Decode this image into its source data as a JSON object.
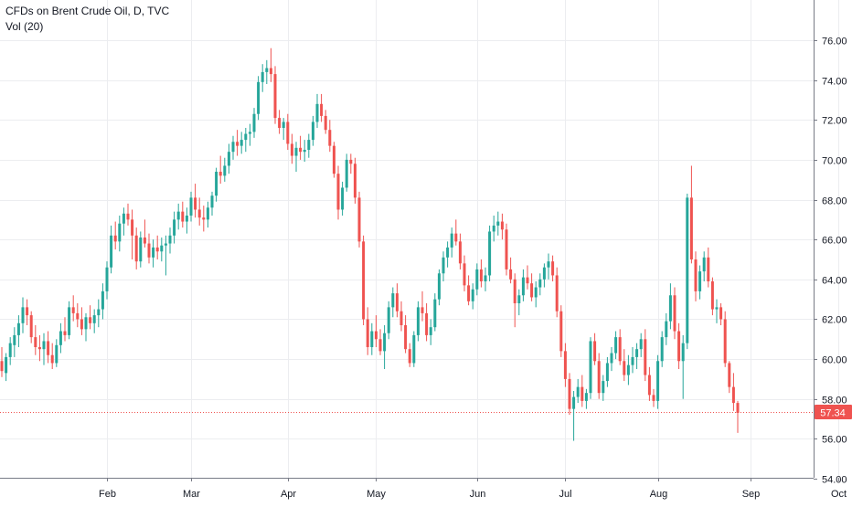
{
  "legend": {
    "symbol_line": "CFDs on Brent Crude Oil, D, TVC",
    "indicator_line": "Vol (20)"
  },
  "colors": {
    "up": "#26a69a",
    "down": "#ef5350",
    "grid": "#ecedf0",
    "axis_text": "#131722",
    "price_line": "#ef5350",
    "background": "#ffffff"
  },
  "last_price": {
    "value": 57.34,
    "label": "57.34"
  },
  "chart_data": {
    "type": "candlestick",
    "title": "CFDs on Brent Crude Oil, D, TVC",
    "xlabel": "",
    "ylabel": "",
    "ylim": [
      54,
      78
    ],
    "y_ticks": [
      "54.00",
      "56.00",
      "58.00",
      "60.00",
      "62.00",
      "64.00",
      "66.00",
      "68.00",
      "70.00",
      "72.00",
      "74.00",
      "76.00"
    ],
    "x_ticks": [
      "Feb",
      "Mar",
      "Apr",
      "May",
      "Jun",
      "Jul",
      "Aug",
      "Sep",
      "Oct"
    ],
    "x_tick_positions": [
      25,
      45,
      68,
      89,
      113,
      134,
      156,
      178,
      199
    ],
    "grid": true,
    "candles": [
      [
        59.9,
        60.6,
        59.1,
        59.4
      ],
      [
        59.3,
        60.3,
        58.9,
        60.1
      ],
      [
        60.1,
        61.1,
        59.7,
        60.8
      ],
      [
        60.7,
        61.6,
        60.1,
        61.2
      ],
      [
        61.2,
        62.2,
        60.6,
        61.8
      ],
      [
        61.8,
        63.1,
        61.3,
        62.6
      ],
      [
        62.6,
        63.0,
        61.7,
        62.2
      ],
      [
        62.2,
        62.4,
        60.8,
        61.1
      ],
      [
        61.1,
        61.7,
        60.2,
        60.6
      ],
      [
        60.6,
        61.2,
        59.9,
        60.5
      ],
      [
        60.5,
        61.3,
        59.7,
        60.9
      ],
      [
        60.9,
        61.4,
        59.8,
        60.2
      ],
      [
        60.2,
        60.8,
        59.5,
        59.8
      ],
      [
        59.8,
        61.0,
        59.6,
        60.7
      ],
      [
        60.7,
        61.8,
        60.3,
        61.4
      ],
      [
        61.4,
        62.1,
        60.9,
        61.2
      ],
      [
        61.2,
        62.9,
        61.0,
        62.6
      ],
      [
        62.6,
        63.2,
        61.9,
        62.3
      ],
      [
        62.3,
        62.8,
        61.6,
        62.0
      ],
      [
        62.0,
        62.6,
        61.2,
        61.5
      ],
      [
        61.5,
        62.3,
        60.9,
        62.1
      ],
      [
        62.1,
        62.7,
        61.5,
        61.8
      ],
      [
        61.8,
        62.5,
        61.3,
        62.2
      ],
      [
        62.2,
        63.0,
        61.6,
        62.5
      ],
      [
        62.5,
        63.8,
        62.0,
        63.4
      ],
      [
        63.4,
        64.9,
        63.0,
        64.6
      ],
      [
        64.6,
        66.7,
        64.3,
        66.2
      ],
      [
        66.2,
        66.9,
        65.5,
        65.9
      ],
      [
        65.9,
        67.2,
        65.4,
        66.8
      ],
      [
        66.8,
        67.6,
        66.2,
        67.3
      ],
      [
        67.3,
        67.8,
        66.7,
        67.0
      ],
      [
        67.0,
        67.5,
        65.0,
        66.2
      ],
      [
        66.2,
        66.6,
        64.5,
        64.9
      ],
      [
        64.9,
        66.4,
        64.6,
        66.1
      ],
      [
        66.1,
        67.0,
        65.6,
        65.8
      ],
      [
        65.8,
        66.3,
        64.8,
        65.1
      ],
      [
        65.1,
        66.0,
        64.6,
        65.6
      ],
      [
        65.6,
        66.2,
        65.0,
        65.4
      ],
      [
        65.4,
        66.1,
        64.9,
        65.7
      ],
      [
        65.7,
        66.2,
        64.2,
        65.8
      ],
      [
        65.8,
        66.6,
        65.3,
        66.2
      ],
      [
        66.2,
        67.4,
        65.8,
        67.0
      ],
      [
        67.0,
        67.8,
        66.5,
        67.4
      ],
      [
        67.4,
        67.9,
        66.6,
        66.9
      ],
      [
        66.9,
        67.6,
        66.3,
        67.2
      ],
      [
        67.2,
        68.4,
        66.9,
        68.1
      ],
      [
        68.1,
        68.8,
        67.1,
        67.5
      ],
      [
        67.5,
        68.1,
        66.7,
        67.1
      ],
      [
        67.1,
        67.7,
        66.4,
        67.0
      ],
      [
        67.0,
        67.9,
        66.6,
        67.6
      ],
      [
        67.6,
        68.4,
        67.2,
        68.2
      ],
      [
        68.2,
        69.6,
        67.9,
        69.4
      ],
      [
        69.4,
        70.2,
        68.8,
        69.2
      ],
      [
        69.2,
        70.1,
        68.9,
        69.7
      ],
      [
        69.7,
        70.8,
        69.3,
        70.4
      ],
      [
        70.4,
        71.2,
        70.0,
        70.9
      ],
      [
        70.9,
        71.5,
        70.2,
        70.7
      ],
      [
        70.7,
        71.4,
        70.3,
        71.0
      ],
      [
        71.0,
        71.6,
        70.4,
        71.3
      ],
      [
        71.3,
        71.8,
        70.7,
        71.4
      ],
      [
        71.4,
        72.6,
        71.1,
        72.3
      ],
      [
        72.3,
        74.2,
        72.0,
        73.9
      ],
      [
        73.9,
        74.8,
        73.4,
        74.4
      ],
      [
        74.4,
        75.0,
        73.8,
        74.6
      ],
      [
        74.6,
        75.6,
        73.9,
        74.3
      ],
      [
        74.3,
        74.7,
        71.8,
        72.1
      ],
      [
        72.1,
        72.5,
        71.3,
        71.6
      ],
      [
        71.6,
        72.1,
        71.0,
        71.9
      ],
      [
        71.9,
        72.3,
        70.5,
        70.8
      ],
      [
        70.8,
        71.3,
        69.8,
        70.2
      ],
      [
        70.2,
        70.9,
        69.4,
        70.6
      ],
      [
        70.6,
        71.2,
        70.0,
        70.4
      ],
      [
        70.4,
        71.0,
        69.9,
        70.5
      ],
      [
        70.5,
        71.3,
        70.1,
        71.0
      ],
      [
        71.0,
        72.2,
        70.7,
        71.9
      ],
      [
        71.9,
        73.3,
        71.6,
        72.8
      ],
      [
        72.8,
        73.3,
        71.9,
        72.2
      ],
      [
        72.2,
        72.5,
        71.3,
        71.5
      ],
      [
        71.5,
        72.0,
        70.4,
        70.7
      ],
      [
        70.7,
        70.9,
        69.1,
        69.3
      ],
      [
        69.3,
        69.7,
        67.0,
        67.5
      ],
      [
        67.5,
        68.9,
        67.2,
        68.6
      ],
      [
        68.6,
        70.3,
        68.4,
        70.0
      ],
      [
        70.0,
        70.3,
        69.3,
        69.8
      ],
      [
        69.8,
        70.1,
        67.8,
        68.1
      ],
      [
        68.1,
        68.4,
        65.6,
        65.9
      ],
      [
        65.9,
        66.2,
        61.7,
        62.0
      ],
      [
        62.0,
        62.6,
        60.2,
        60.6
      ],
      [
        60.6,
        61.8,
        60.2,
        61.4
      ],
      [
        61.4,
        62.2,
        60.6,
        61.0
      ],
      [
        61.0,
        61.5,
        60.2,
        60.4
      ],
      [
        60.4,
        61.7,
        59.5,
        61.3
      ],
      [
        61.3,
        62.9,
        61.0,
        62.6
      ],
      [
        62.6,
        63.6,
        62.1,
        63.3
      ],
      [
        63.3,
        63.8,
        62.1,
        62.4
      ],
      [
        62.4,
        62.9,
        61.4,
        61.7
      ],
      [
        61.7,
        62.2,
        60.3,
        60.5
      ],
      [
        60.5,
        60.8,
        59.6,
        59.8
      ],
      [
        59.8,
        61.4,
        59.6,
        61.2
      ],
      [
        61.2,
        62.9,
        60.9,
        62.6
      ],
      [
        62.6,
        63.4,
        61.9,
        62.3
      ],
      [
        62.3,
        62.8,
        60.9,
        61.2
      ],
      [
        61.2,
        62.0,
        60.7,
        61.6
      ],
      [
        61.6,
        63.3,
        61.4,
        63.0
      ],
      [
        63.0,
        64.5,
        62.7,
        64.3
      ],
      [
        64.3,
        65.4,
        63.9,
        65.1
      ],
      [
        65.1,
        65.9,
        64.6,
        65.6
      ],
      [
        65.6,
        66.6,
        65.1,
        66.3
      ],
      [
        66.3,
        67.0,
        65.7,
        65.9
      ],
      [
        65.9,
        66.3,
        64.5,
        64.8
      ],
      [
        64.8,
        65.2,
        63.4,
        63.7
      ],
      [
        63.7,
        64.2,
        62.7,
        62.9
      ],
      [
        62.9,
        63.8,
        62.5,
        63.5
      ],
      [
        63.5,
        64.8,
        63.2,
        64.5
      ],
      [
        64.5,
        65.0,
        63.6,
        63.9
      ],
      [
        63.9,
        64.6,
        63.4,
        64.2
      ],
      [
        64.2,
        66.7,
        63.9,
        66.4
      ],
      [
        66.4,
        67.2,
        65.9,
        66.7
      ],
      [
        66.7,
        67.4,
        66.2,
        66.9
      ],
      [
        66.9,
        67.3,
        66.0,
        66.5
      ],
      [
        66.5,
        66.8,
        64.2,
        64.5
      ],
      [
        64.5,
        65.1,
        63.8,
        64.0
      ],
      [
        64.0,
        64.3,
        61.6,
        62.8
      ],
      [
        62.8,
        63.5,
        62.2,
        63.2
      ],
      [
        63.2,
        64.5,
        62.9,
        64.1
      ],
      [
        64.1,
        64.7,
        63.5,
        63.8
      ],
      [
        63.8,
        64.3,
        62.9,
        63.1
      ],
      [
        63.1,
        63.9,
        62.6,
        63.6
      ],
      [
        63.6,
        64.3,
        63.2,
        64.0
      ],
      [
        64.0,
        64.8,
        63.6,
        64.6
      ],
      [
        64.6,
        65.3,
        64.0,
        64.9
      ],
      [
        64.9,
        65.2,
        63.9,
        64.2
      ],
      [
        64.2,
        64.6,
        62.1,
        62.4
      ],
      [
        62.4,
        62.7,
        60.1,
        60.4
      ],
      [
        60.4,
        60.8,
        58.6,
        59.0
      ],
      [
        59.0,
        59.3,
        57.2,
        57.5
      ],
      [
        57.5,
        58.4,
        55.9,
        58.1
      ],
      [
        58.1,
        59.0,
        57.8,
        58.6
      ],
      [
        58.6,
        59.2,
        57.6,
        57.9
      ],
      [
        57.9,
        58.5,
        57.5,
        58.3
      ],
      [
        58.3,
        61.1,
        58.0,
        60.9
      ],
      [
        60.9,
        61.3,
        59.7,
        59.9
      ],
      [
        59.9,
        60.3,
        58.0,
        58.3
      ],
      [
        58.3,
        59.2,
        57.9,
        58.9
      ],
      [
        58.9,
        60.1,
        58.6,
        59.8
      ],
      [
        59.8,
        60.6,
        59.4,
        60.3
      ],
      [
        60.3,
        61.4,
        60.0,
        61.1
      ],
      [
        61.1,
        61.5,
        59.7,
        59.9
      ],
      [
        59.9,
        60.5,
        58.9,
        59.2
      ],
      [
        59.2,
        60.2,
        58.7,
        59.7
      ],
      [
        59.7,
        60.6,
        59.3,
        60.1
      ],
      [
        60.1,
        60.8,
        59.5,
        60.5
      ],
      [
        60.5,
        61.3,
        60.1,
        61.0
      ],
      [
        61.0,
        61.5,
        58.9,
        59.2
      ],
      [
        59.2,
        59.6,
        57.9,
        58.2
      ],
      [
        58.2,
        58.5,
        57.6,
        57.9
      ],
      [
        57.9,
        60.2,
        57.5,
        59.9
      ],
      [
        59.9,
        61.4,
        59.6,
        61.1
      ],
      [
        61.1,
        62.3,
        60.7,
        61.9
      ],
      [
        61.9,
        63.8,
        61.5,
        63.2
      ],
      [
        63.2,
        63.6,
        61.0,
        61.4
      ],
      [
        61.4,
        61.8,
        59.5,
        59.9
      ],
      [
        59.9,
        61.2,
        58.0,
        60.8
      ],
      [
        60.8,
        68.3,
        60.5,
        68.1
      ],
      [
        68.1,
        69.7,
        64.8,
        65.0
      ],
      [
        65.0,
        65.4,
        62.9,
        63.4
      ],
      [
        63.4,
        64.7,
        63.0,
        64.4
      ],
      [
        64.4,
        65.4,
        63.9,
        65.1
      ],
      [
        65.1,
        65.6,
        63.6,
        63.9
      ],
      [
        63.9,
        64.1,
        62.2,
        62.5
      ],
      [
        62.5,
        63.0,
        61.8,
        62.6
      ],
      [
        62.6,
        62.8,
        61.7,
        62.0
      ],
      [
        62.0,
        62.4,
        59.6,
        59.8
      ],
      [
        59.8,
        59.9,
        58.3,
        58.6
      ],
      [
        58.6,
        59.3,
        57.4,
        57.8
      ],
      [
        57.8,
        57.9,
        56.3,
        57.3
      ]
    ]
  }
}
